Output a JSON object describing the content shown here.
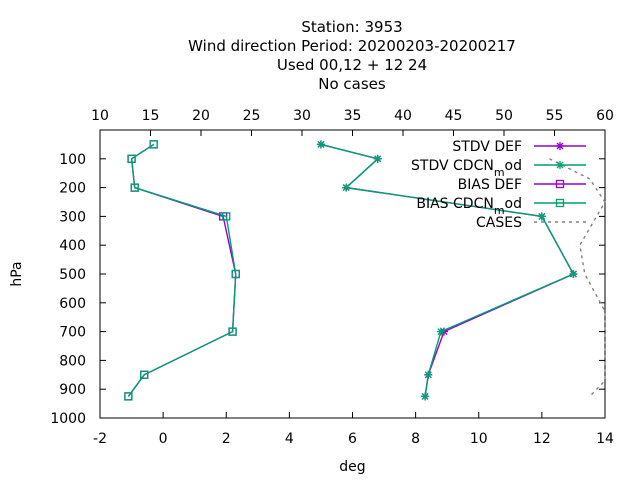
{
  "chart_data": {
    "type": "line",
    "title_lines": [
      "Station:     3953",
      "Wind direction  Period: 20200203-20200217",
      "Used  00,12  + 12 24",
      "No cases"
    ],
    "xlabel": "deg",
    "ylabel": "hPa",
    "x_bottom": {
      "range": [
        -2,
        14
      ],
      "ticks": [
        "-2",
        "0",
        "2",
        "4",
        "6",
        "8",
        "10",
        "12",
        "14"
      ]
    },
    "x_top": {
      "range": [
        10,
        60
      ],
      "ticks": [
        "10",
        "15",
        "20",
        "25",
        "30",
        "35",
        "40",
        "45",
        "50",
        "55",
        "60"
      ]
    },
    "y": {
      "range": [
        1000,
        0
      ],
      "ticks": [
        "100",
        "200",
        "300",
        "400",
        "500",
        "600",
        "700",
        "800",
        "900",
        "1000"
      ]
    },
    "legend_position": "top-right",
    "series": [
      {
        "name": "STDV DEF",
        "axis": "bottom",
        "color": "#9400d3",
        "marker": "star",
        "x": [
          5.0,
          6.8,
          5.8,
          12.0,
          13.0,
          8.9,
          8.4,
          8.3
        ],
        "y": [
          50,
          100,
          200,
          300,
          500,
          700,
          850,
          925
        ]
      },
      {
        "name": "STDV CDCN_mod",
        "axis": "bottom",
        "color": "#009e73",
        "marker": "star",
        "x": [
          5.0,
          6.8,
          5.8,
          12.0,
          13.0,
          8.8,
          8.4,
          8.3
        ],
        "y": [
          50,
          100,
          200,
          300,
          500,
          700,
          850,
          925
        ]
      },
      {
        "name": "BIAS DEF",
        "axis": "bottom",
        "color": "#9400d3",
        "marker": "square",
        "x": [
          -0.3,
          -1.0,
          -0.9,
          1.9,
          2.3,
          2.2,
          -0.6,
          -1.1
        ],
        "y": [
          50,
          100,
          200,
          300,
          500,
          700,
          850,
          925
        ]
      },
      {
        "name": "BIAS CDCN_mod",
        "axis": "bottom",
        "color": "#009e73",
        "marker": "square",
        "x": [
          -0.3,
          -1.0,
          -0.9,
          2.0,
          2.3,
          2.2,
          -0.6,
          -1.1
        ],
        "y": [
          50,
          100,
          200,
          300,
          500,
          700,
          850,
          925
        ]
      },
      {
        "name": "CASES",
        "axis": "top",
        "color": "#808080",
        "marker": "none",
        "dashed": true,
        "x": [
          54.5,
          58.5,
          60.0,
          57.5,
          58.0,
          60.0,
          60.0,
          60.0,
          58.5
        ],
        "y": [
          100,
          170,
          250,
          400,
          500,
          630,
          700,
          870,
          925
        ]
      }
    ]
  },
  "legend_entries": [
    {
      "prefix": "STDV DEF",
      "sub": "",
      "suffix": ""
    },
    {
      "prefix": "STDV CDCN",
      "sub": "m",
      "suffix": "od"
    },
    {
      "prefix": "BIAS DEF",
      "sub": "",
      "suffix": ""
    },
    {
      "prefix": "BIAS CDCN",
      "sub": "m",
      "suffix": "od"
    },
    {
      "prefix": "CASES",
      "sub": "",
      "suffix": ""
    }
  ]
}
